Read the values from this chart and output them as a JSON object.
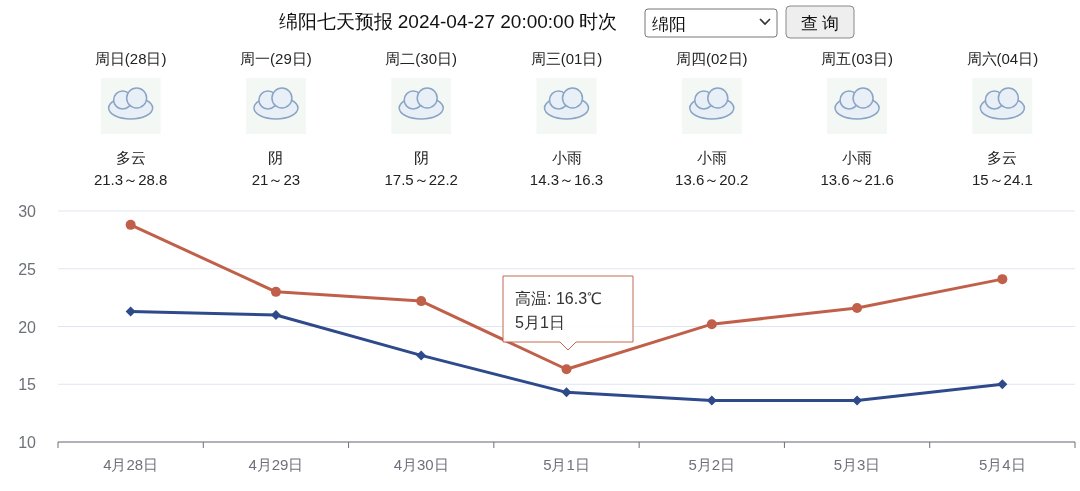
{
  "chart_data": {
    "type": "line",
    "title": "绵阳七天预报 2024-04-27 20:00:00 时次",
    "categories": [
      "4月28日",
      "4月29日",
      "4月30日",
      "5月1日",
      "5月2日",
      "5月3日",
      "5月4日"
    ],
    "series": [
      {
        "color": "#c1604a",
        "marker": "circle",
        "values": [
          28.8,
          23,
          22.2,
          16.3,
          20.2,
          21.6,
          24.1
        ]
      },
      {
        "color": "#2f4a8a",
        "marker": "diamond",
        "values": [
          21.3,
          21,
          17.5,
          14.3,
          13.6,
          13.6,
          15
        ]
      }
    ],
    "ylim": [
      10,
      30
    ],
    "yticks": [
      10,
      15,
      20,
      25,
      30
    ],
    "grid": "y",
    "annotations": [
      "绵阳",
      "查 询",
      "周日(28日)",
      "多云",
      "21.3～28.8",
      "周一(29日)",
      "阴",
      "21～23",
      "周二(30日)",
      "阴",
      "17.5～22.2",
      "周三(01日)",
      "小雨",
      "14.3～16.3",
      "周四(02日)",
      "小雨",
      "13.6～20.2",
      "周五(03日)",
      "小雨",
      "13.6～21.6",
      "周六(04日)",
      "多云",
      "15～24.1",
      "高温: 16.3℃",
      "5月1日"
    ]
  }
}
